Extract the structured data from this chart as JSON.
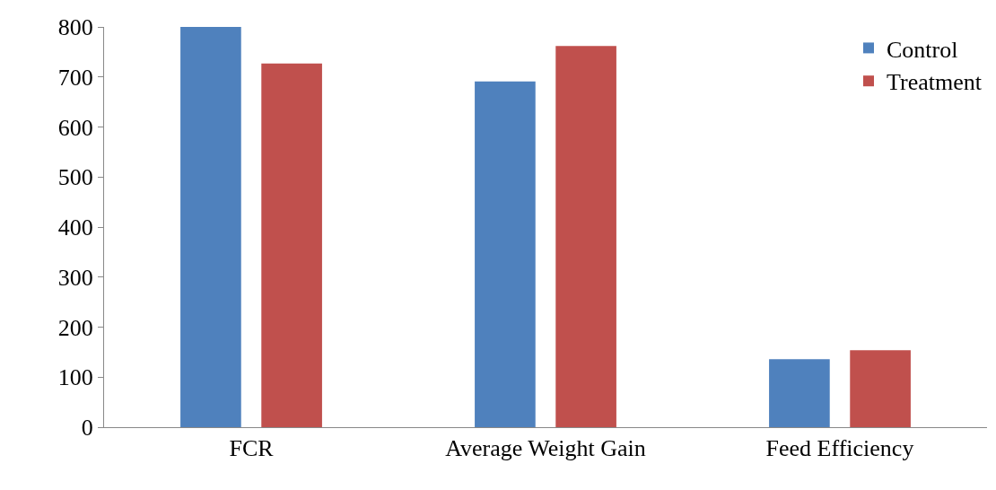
{
  "chart_data": {
    "type": "bar",
    "categories": [
      "FCR",
      "Average Weight Gain",
      "Feed Efficiency"
    ],
    "series": [
      {
        "name": "Control",
        "color": "#4f81bd",
        "values": [
          800,
          691,
          136
        ]
      },
      {
        "name": "Treatment",
        "color": "#c0504d",
        "values": [
          727,
          762,
          154
        ]
      }
    ],
    "ylim": [
      0,
      800
    ],
    "yticks": [
      0,
      100,
      200,
      300,
      400,
      500,
      600,
      700,
      800
    ],
    "grid": false,
    "legend": "top right"
  }
}
